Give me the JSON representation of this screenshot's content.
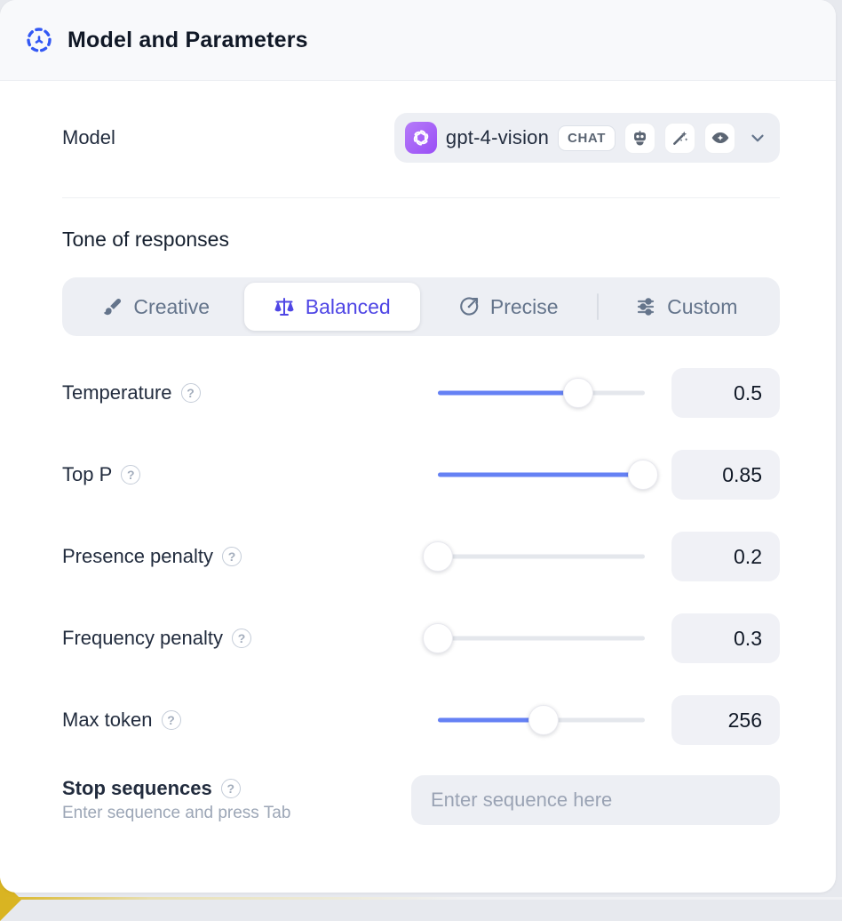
{
  "header": {
    "title": "Model and Parameters"
  },
  "model_row": {
    "label": "Model",
    "select": {
      "value": "gpt-4-vision",
      "type_badge": "CHAT",
      "capabilities": [
        "assistant",
        "magic",
        "vision"
      ]
    }
  },
  "tone": {
    "heading": "Tone of responses",
    "selected": "Balanced",
    "options": [
      {
        "label": "Creative"
      },
      {
        "label": "Balanced"
      },
      {
        "label": "Precise"
      },
      {
        "label": "Custom"
      }
    ]
  },
  "parameters": [
    {
      "label": "Temperature",
      "value": "0.5",
      "fill_pct": 68
    },
    {
      "label": "Top P",
      "value": "0.85",
      "fill_pct": 99
    },
    {
      "label": "Presence penalty",
      "value": "0.2",
      "fill_pct": 0
    },
    {
      "label": "Frequency penalty",
      "value": "0.3",
      "fill_pct": 0
    },
    {
      "label": "Max token",
      "value": "256",
      "fill_pct": 51
    }
  ],
  "stop_sequences": {
    "label": "Stop sequences",
    "hint": "Enter sequence and press Tab",
    "placeholder": "Enter sequence here"
  },
  "icons": {
    "help_glyph": "?"
  },
  "colors": {
    "accent_blue": "#3358f4",
    "selected_indigo": "#4f46e5",
    "slider_active": "#6581f4",
    "provider_purple": "#9a4ef6",
    "background_yellow": "#d9b422"
  }
}
